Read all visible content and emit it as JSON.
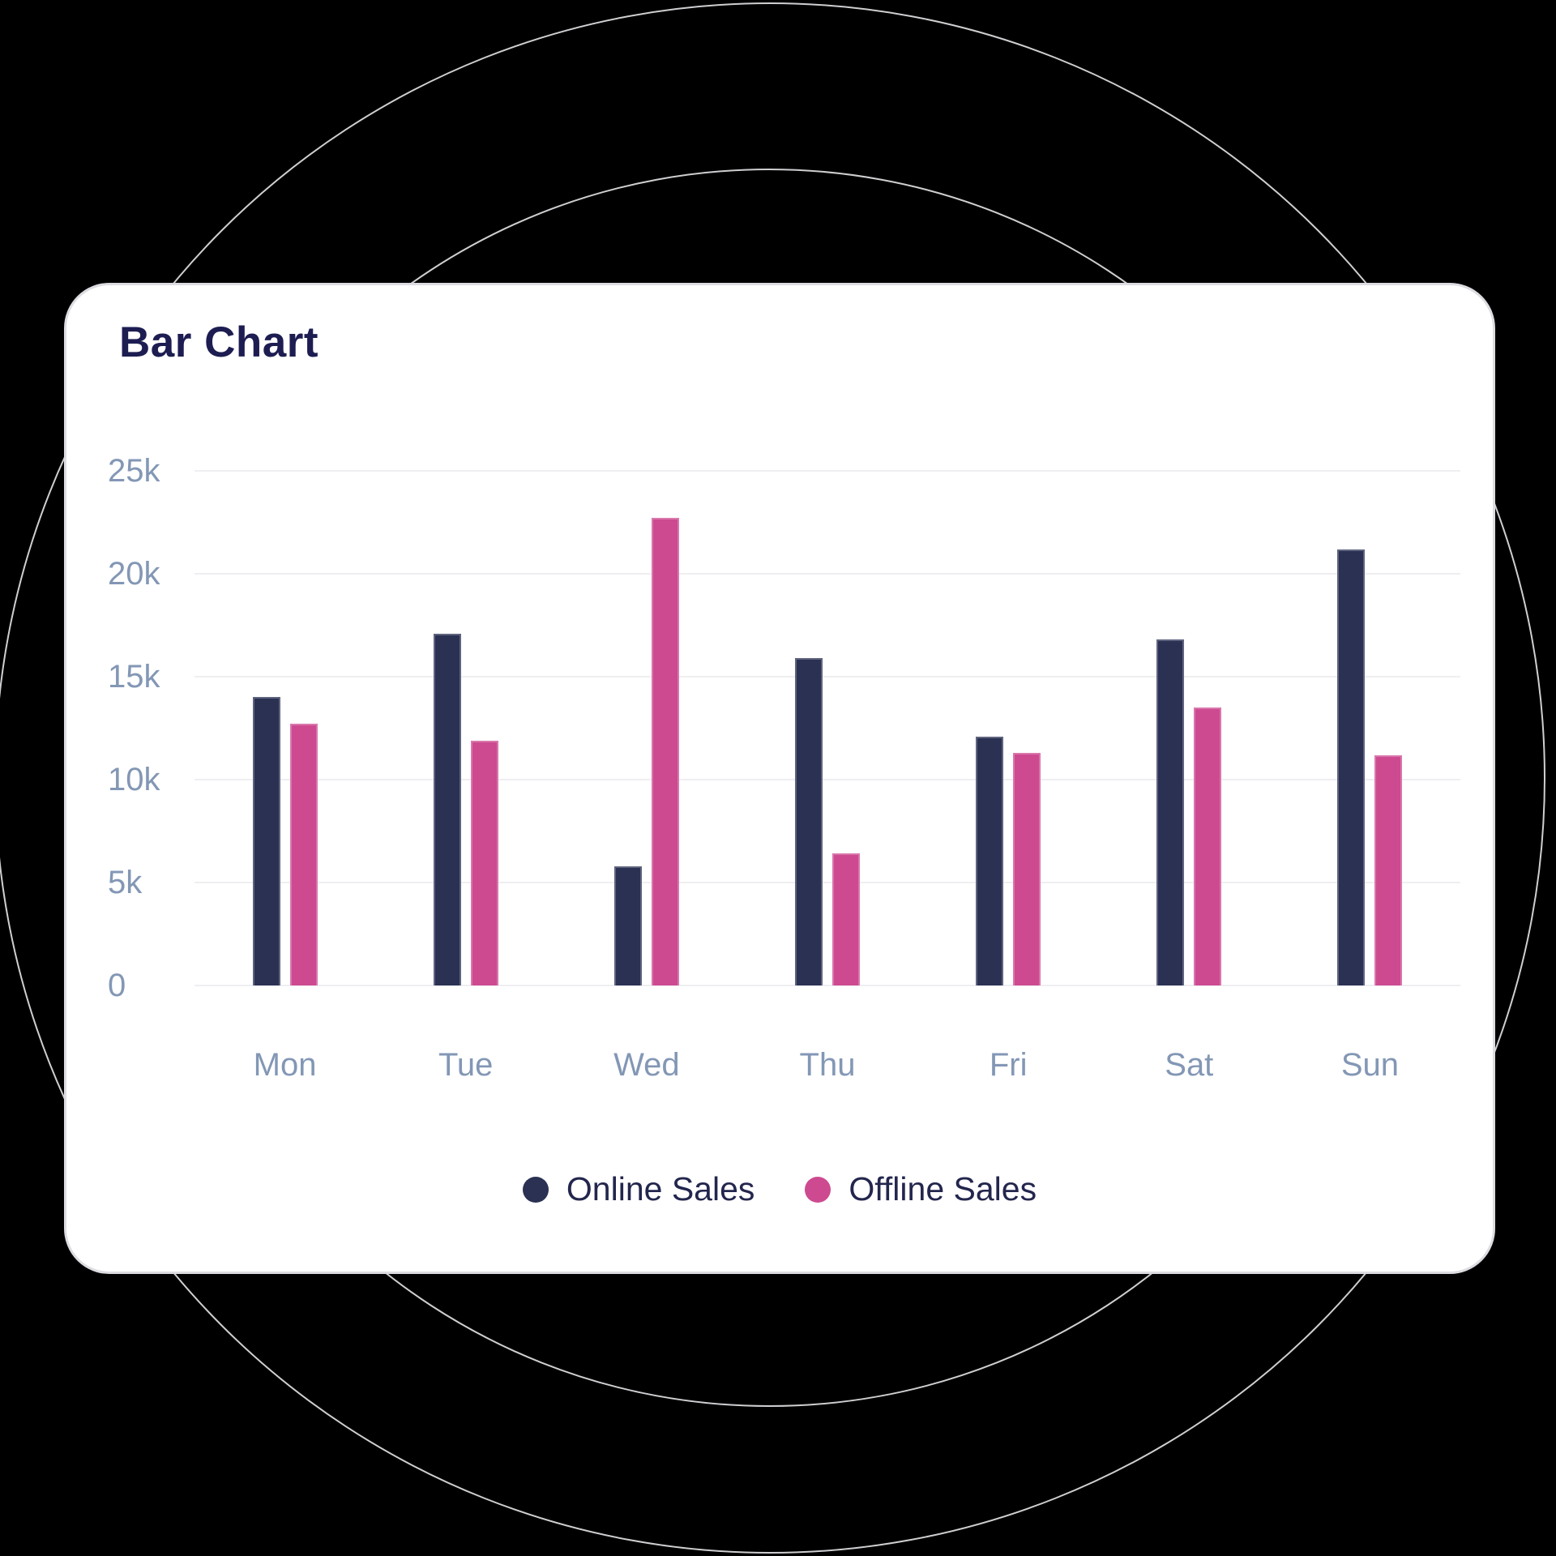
{
  "page": {
    "background_color": "#000000",
    "decor_circle_color": "#cfcfd2",
    "card_background": "#ffffff",
    "card_border_color": "#dcdce1",
    "title_color": "#1d1d52",
    "axis_label_color": "#8397b5",
    "gridline_color": "#efeff2",
    "legend_text_color": "#23264d"
  },
  "chart_data": {
    "type": "bar",
    "title": "Bar Chart",
    "categories": [
      "Mon",
      "Tue",
      "Wed",
      "Thu",
      "Fri",
      "Sat",
      "Sun"
    ],
    "series": [
      {
        "name": "Online Sales",
        "color": "#2a3153",
        "values": [
          14000,
          17100,
          5800,
          15900,
          12100,
          16800,
          21200
        ]
      },
      {
        "name": "Offline Sales",
        "color": "#cd4a90",
        "values": [
          12700,
          11900,
          22700,
          6400,
          11300,
          13500,
          11200
        ]
      }
    ],
    "ylim": [
      0,
      25000
    ],
    "ytick_values": [
      25000,
      20000,
      15000,
      10000,
      5000,
      0
    ],
    "ytick_labels": [
      "25k",
      "20k",
      "15k",
      "10k",
      "5k",
      "0"
    ],
    "ylabel": "",
    "xlabel": "",
    "grid": true,
    "legend_position": "bottom"
  }
}
